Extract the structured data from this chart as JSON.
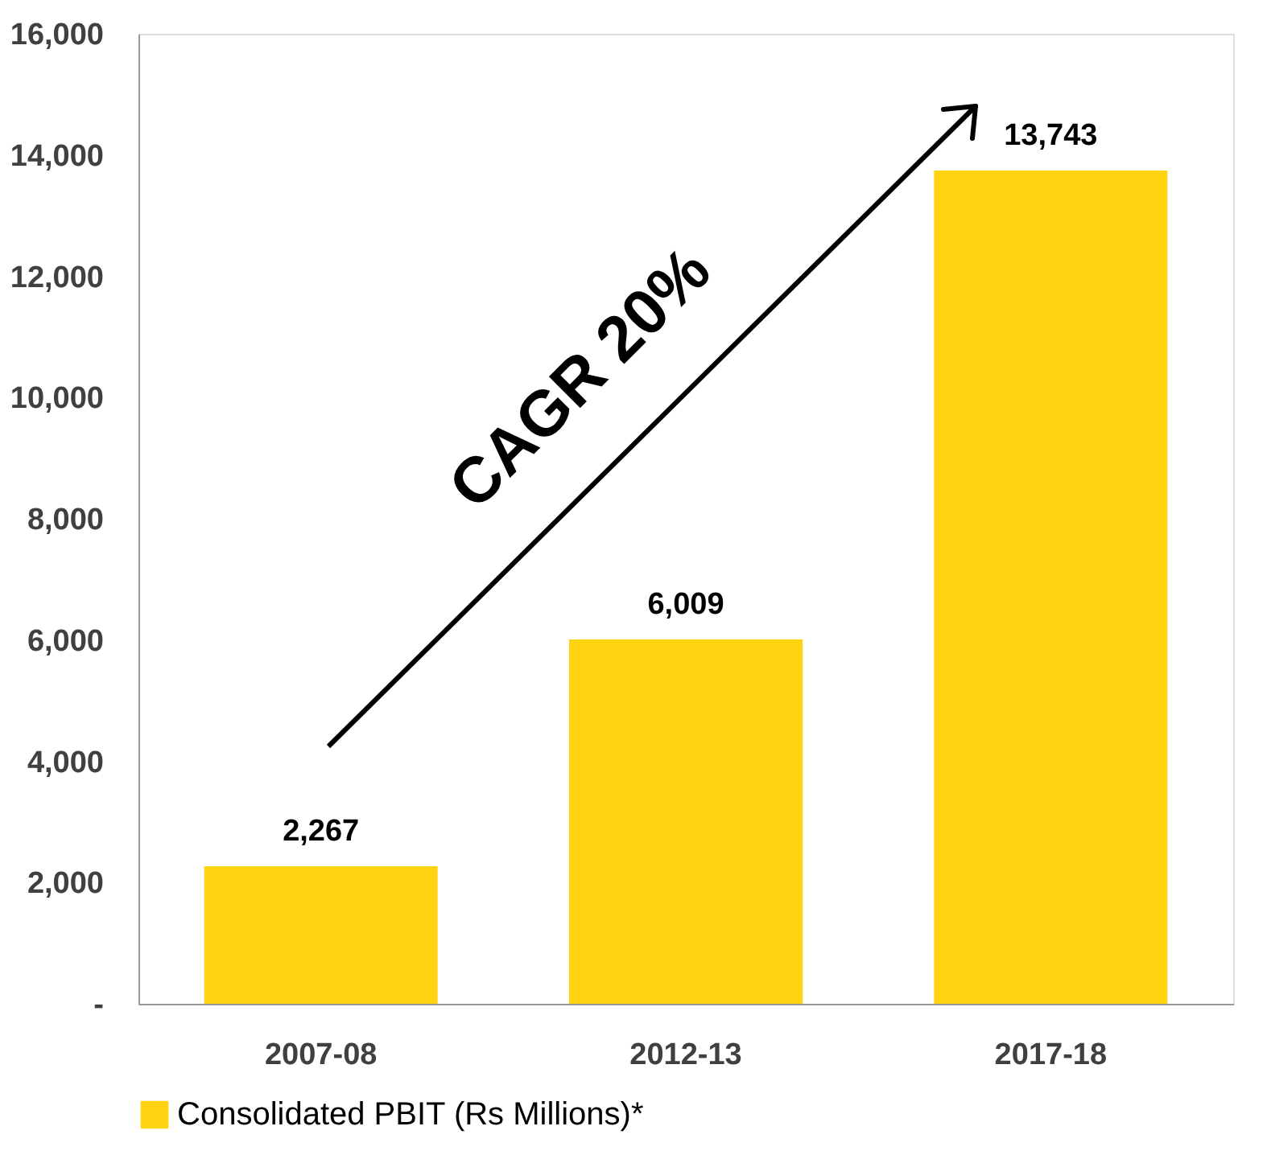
{
  "chart_data": {
    "type": "bar",
    "categories": [
      "2007-08",
      "2012-13",
      "2017-18"
    ],
    "series": [
      {
        "name": "Consolidated PBIT (Rs Millions)*",
        "color": "#ffd310",
        "values": [
          2267,
          6009,
          13743
        ]
      }
    ],
    "ylim": [
      0,
      16000
    ],
    "yticks": [
      {
        "value": 0,
        "label": "-"
      },
      {
        "value": 2000,
        "label": "2,000"
      },
      {
        "value": 4000,
        "label": "4,000"
      },
      {
        "value": 6000,
        "label": "6,000"
      },
      {
        "value": 8000,
        "label": "8,000"
      },
      {
        "value": 10000,
        "label": "10,000"
      },
      {
        "value": 12000,
        "label": "12,000"
      },
      {
        "value": 14000,
        "label": "14,000"
      },
      {
        "value": 16000,
        "label": "16,000"
      }
    ],
    "value_labels": [
      "2,267",
      "6,009",
      "13,743"
    ],
    "annotations": [
      "CAGR 20%"
    ],
    "legend": "bottom",
    "grid": false
  }
}
